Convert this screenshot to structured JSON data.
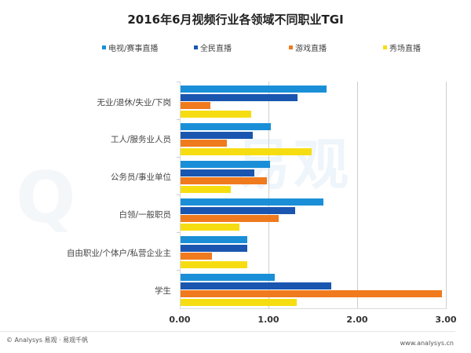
{
  "chart_data": {
    "type": "bar",
    "orientation": "horizontal",
    "title": "2016年6月视频行业各领域不同职业TGI",
    "categories": [
      "无业/退休/失业/下岗",
      "工人/服务业人员",
      "公务员/事业单位",
      "白领/一般职员",
      "自由职业/个体户/私营企业主",
      "学生"
    ],
    "series": [
      {
        "name": "电视/赛事直播",
        "color": "#1a8fd8",
        "values": [
          1.65,
          1.02,
          1.01,
          1.61,
          0.75,
          1.06
        ]
      },
      {
        "name": "全民直播",
        "color": "#1a56b0",
        "values": [
          1.32,
          0.81,
          0.83,
          1.29,
          0.75,
          1.7
        ]
      },
      {
        "name": "游戏直播",
        "color": "#f07a1e",
        "values": [
          0.34,
          0.52,
          0.97,
          1.11,
          0.35,
          2.95
        ]
      },
      {
        "name": "秀场直播",
        "color": "#f6dd12",
        "values": [
          0.8,
          1.48,
          0.57,
          0.66,
          0.75,
          1.31
        ]
      }
    ],
    "xlabel": "",
    "ylabel": "",
    "xlim": [
      0,
      3
    ],
    "xticks": [
      "0.00",
      "1.00",
      "2.00",
      "3.00"
    ],
    "grid": true,
    "legend_position": "top"
  },
  "legend": {
    "items": [
      {
        "label": "电视/赛事直播",
        "color": "#1a8fd8"
      },
      {
        "label": "全民直播",
        "color": "#1a56b0"
      },
      {
        "label": "游戏直播",
        "color": "#f07a1e"
      },
      {
        "label": "秀场直播",
        "color": "#f6dd12"
      }
    ]
  },
  "watermark": "易观",
  "footer": {
    "left": "© Analysys 易观 · 易观千帆",
    "right": "www.analysys.cn"
  }
}
